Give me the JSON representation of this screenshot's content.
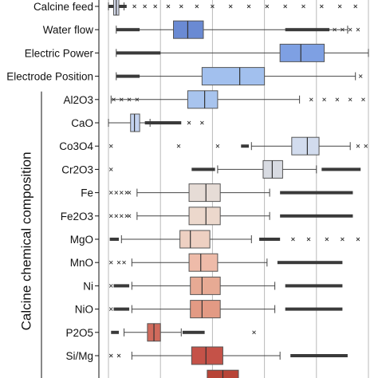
{
  "chart_data": {
    "type": "box",
    "title": "",
    "xlabel": "",
    "ylabel": "",
    "group_label": "Calcine chemical composition",
    "xlim": [
      0,
      1
    ],
    "grid": "vertical",
    "variables": [
      {
        "name": "Calcine feed",
        "q1": 0.02,
        "median": 0.03,
        "q3": 0.04,
        "whisker_low": 0.0,
        "whisker_high": 0.06,
        "outlier_dense": [
          [
            0.0,
            0.07
          ]
        ],
        "outliers": [
          0.1,
          0.14,
          0.18,
          0.23,
          0.28,
          0.34,
          0.4,
          0.47,
          0.54,
          0.61,
          0.68,
          0.75,
          0.82,
          0.89,
          0.95
        ],
        "color": "#d5dbec"
      },
      {
        "name": "Water flow",
        "q1": 0.25,
        "median": 0.305,
        "q3": 0.365,
        "whisker_low": 0.03,
        "whisker_high": 0.92,
        "outlier_dense": [
          [
            0.03,
            0.12
          ],
          [
            0.68,
            0.85
          ]
        ],
        "outliers": [
          0.87,
          0.9,
          0.93,
          0.96
        ],
        "color": "#6a8ad3"
      },
      {
        "name": "Electric Power",
        "q1": 0.66,
        "median": 0.74,
        "q3": 0.83,
        "whisker_low": 0.03,
        "whisker_high": 1.0,
        "outlier_dense": [
          [
            0.03,
            0.2
          ]
        ],
        "outliers": [],
        "color": "#7ea0e3"
      },
      {
        "name": "Electrode Position",
        "q1": 0.36,
        "median": 0.505,
        "q3": 0.6,
        "whisker_low": 0.03,
        "whisker_high": 0.95,
        "outlier_dense": [
          [
            0.03,
            0.12
          ]
        ],
        "outliers": [
          0.97
        ],
        "color": "#a2c0ee"
      },
      {
        "name": "Al2O3",
        "q1": 0.305,
        "median": 0.37,
        "q3": 0.42,
        "whisker_low": 0.01,
        "whisker_high": 0.735,
        "outlier_dense": [],
        "outliers": [
          0.02,
          0.05,
          0.08,
          0.11,
          0.78,
          0.83,
          0.88,
          0.93,
          0.98
        ],
        "color": "#a8c4ee"
      },
      {
        "name": "CaO",
        "q1": 0.085,
        "median": 0.1,
        "q3": 0.12,
        "whisker_low": 0.0,
        "whisker_high": 0.16,
        "outlier_dense": [
          [
            0.14,
            0.28
          ]
        ],
        "outliers": [
          0.31,
          0.36
        ],
        "color": "#c4d3f0"
      },
      {
        "name": "Co3O4",
        "q1": 0.705,
        "median": 0.765,
        "q3": 0.81,
        "whisker_low": 0.55,
        "whisker_high": 0.93,
        "outlier_dense": [
          [
            0.51,
            0.54
          ]
        ],
        "outliers": [
          0.01,
          0.27,
          0.42,
          0.96,
          0.99
        ],
        "color": "#d2dcee"
      },
      {
        "name": "Cr2O3",
        "q1": 0.595,
        "median": 0.63,
        "q3": 0.67,
        "whisker_low": 0.42,
        "whisker_high": 0.8,
        "outlier_dense": [
          [
            0.32,
            0.41
          ],
          [
            0.82,
            0.97
          ]
        ],
        "outliers": [
          0.01
        ],
        "color": "#d8dbe2"
      },
      {
        "name": "Fe",
        "q1": 0.31,
        "median": 0.375,
        "q3": 0.43,
        "whisker_low": 0.11,
        "whisker_high": 0.62,
        "outlier_dense": [
          [
            0.66,
            0.94
          ]
        ],
        "outliers": [
          0.01,
          0.03,
          0.05,
          0.07,
          0.08
        ],
        "color": "#e6dcd6"
      },
      {
        "name": "Fe2O3",
        "q1": 0.31,
        "median": 0.375,
        "q3": 0.43,
        "whisker_low": 0.11,
        "whisker_high": 0.62,
        "outlier_dense": [
          [
            0.66,
            0.94
          ]
        ],
        "outliers": [
          0.01,
          0.03,
          0.05,
          0.07,
          0.08
        ],
        "color": "#ecd8cc"
      },
      {
        "name": "MgO",
        "q1": 0.275,
        "median": 0.315,
        "q3": 0.39,
        "whisker_low": 0.05,
        "whisker_high": 0.55,
        "outlier_dense": [
          [
            0.005,
            0.04
          ],
          [
            0.58,
            0.66
          ]
        ],
        "outliers": [
          0.71,
          0.77,
          0.84,
          0.9,
          0.96
        ],
        "color": "#eed0c2"
      },
      {
        "name": "MnO",
        "q1": 0.31,
        "median": 0.355,
        "q3": 0.42,
        "whisker_low": 0.09,
        "whisker_high": 0.61,
        "outlier_dense": [
          [
            0.65,
            0.9
          ]
        ],
        "outliers": [
          0.01,
          0.04,
          0.06
        ],
        "color": "#eebba9"
      },
      {
        "name": "Ni",
        "q1": 0.315,
        "median": 0.36,
        "q3": 0.43,
        "whisker_low": 0.09,
        "whisker_high": 0.64,
        "outlier_dense": [
          [
            0.02,
            0.08
          ],
          [
            0.68,
            0.9
          ]
        ],
        "outliers": [
          0.01
        ],
        "color": "#e7aa94"
      },
      {
        "name": "NiO",
        "q1": 0.315,
        "median": 0.36,
        "q3": 0.43,
        "whisker_low": 0.09,
        "whisker_high": 0.64,
        "outlier_dense": [
          [
            0.02,
            0.08
          ],
          [
            0.68,
            0.9
          ]
        ],
        "outliers": [
          0.01
        ],
        "color": "#e39a84"
      },
      {
        "name": "P2O5",
        "q1": 0.15,
        "median": 0.175,
        "q3": 0.2,
        "whisker_low": 0.06,
        "whisker_high": 0.28,
        "outlier_dense": [
          [
            0.01,
            0.04
          ],
          [
            0.285,
            0.37
          ]
        ],
        "outliers": [
          0.56
        ],
        "color": "#d06a5c"
      },
      {
        "name": "Si/Mg",
        "q1": 0.32,
        "median": 0.375,
        "q3": 0.44,
        "whisker_low": 0.09,
        "whisker_high": 0.66,
        "outlier_dense": [
          [
            0.7,
            0.92
          ]
        ],
        "outliers": [
          0.01,
          0.04
        ],
        "color": "#c55248"
      },
      {
        "name": "",
        "q1": 0.38,
        "median": 0.44,
        "q3": 0.5,
        "whisker_low": null,
        "whisker_high": null,
        "outlier_dense": [],
        "outliers": [],
        "color": "#b84437",
        "partial": true
      }
    ]
  }
}
